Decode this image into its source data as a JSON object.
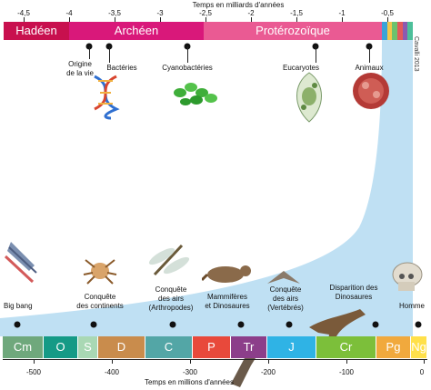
{
  "top_axis": {
    "title": "Temps en milliards d'années",
    "ticks": [
      "-4,5",
      "-4",
      "-3,5",
      "-3",
      "-2,5",
      "-2",
      "-1,5",
      "-1",
      "-0,5"
    ]
  },
  "eons": [
    {
      "label": "Hadéen",
      "color": "#c8104e"
    },
    {
      "label": "Archéen",
      "color": "#d9187a"
    },
    {
      "label": "Protérozoïque",
      "color": "#ea5a93"
    }
  ],
  "top_events": [
    {
      "label": "Origine\nde la vie"
    },
    {
      "label": "Bactéries"
    },
    {
      "label": "Cyanobactéries"
    },
    {
      "label": "Eucaryotes"
    },
    {
      "label": "Animaux"
    }
  ],
  "credit": "Cavalli 2013",
  "bottom_events": [
    {
      "label": "Big bang"
    },
    {
      "label": "Conquête\ndes continents"
    },
    {
      "label": "Conquête\ndes airs\n(Arthropodes)"
    },
    {
      "label": "Mammifères\net Dinosaures"
    },
    {
      "label": "Conquête\ndes airs\n(Vertébrés)"
    },
    {
      "label": "Disparition des\nDinosaures"
    },
    {
      "label": "Homme"
    }
  ],
  "periods": [
    {
      "label": "Cm",
      "color": "#6fa87c"
    },
    {
      "label": "O",
      "color": "#159a86"
    },
    {
      "label": "S",
      "color": "#a9d8b4"
    },
    {
      "label": "D",
      "color": "#c98c4c"
    },
    {
      "label": "C",
      "color": "#53a6a6"
    },
    {
      "label": "P",
      "color": "#e8493b"
    },
    {
      "label": "Tr",
      "color": "#8c3e8a"
    },
    {
      "label": "J",
      "color": "#2fb3e5"
    },
    {
      "label": "Cr",
      "color": "#7cbf3a"
    },
    {
      "label": "Pg",
      "color": "#f1a93d"
    },
    {
      "label": "Ng",
      "color": "#ffe04a"
    }
  ],
  "bottom_axis": {
    "title": "Temps en millions d'années",
    "ticks": [
      "-500",
      "-400",
      "-300",
      "-200",
      "-100",
      "0"
    ]
  },
  "colors": {
    "connector": "#bfe0f3",
    "phanerozoic_strip": [
      "#3aa3d8",
      "#f3c64a",
      "#6cc26d",
      "#e25a5a",
      "#8c5ab0",
      "#4dbf9a"
    ]
  }
}
